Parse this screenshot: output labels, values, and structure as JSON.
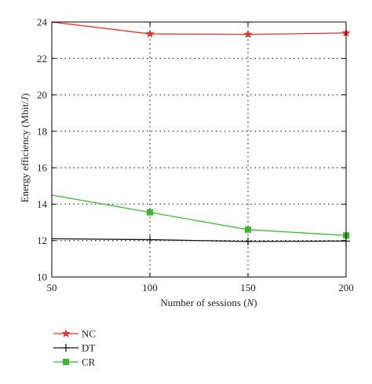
{
  "chart_data": {
    "type": "line",
    "xlabel_prefix": "Number of sessions (",
    "xlabel_var": "N",
    "xlabel_suffix": ")",
    "ylabel_prefix": "Energy efficiency (Mbit/",
    "ylabel_var": "J",
    "ylabel_suffix": ")",
    "x": [
      50,
      100,
      150,
      200
    ],
    "xlim": [
      50,
      200
    ],
    "ylim": [
      10,
      24
    ],
    "xticks": [
      50,
      100,
      150,
      200
    ],
    "yticks": [
      10,
      12,
      14,
      16,
      18,
      20,
      22,
      24
    ],
    "grid": true,
    "legend_position": "bottom-left, below plot",
    "series": [
      {
        "name": "NC",
        "color": "#e8302a",
        "marker": "star",
        "values": [
          24.0,
          23.35,
          23.32,
          23.4
        ]
      },
      {
        "name": "DT",
        "color": "#111111",
        "marker": "plus",
        "values": [
          12.1,
          12.05,
          11.95,
          11.97
        ]
      },
      {
        "name": "CR",
        "color": "#3cb832",
        "marker": "square",
        "values": [
          14.5,
          13.55,
          12.6,
          12.28
        ]
      }
    ]
  }
}
